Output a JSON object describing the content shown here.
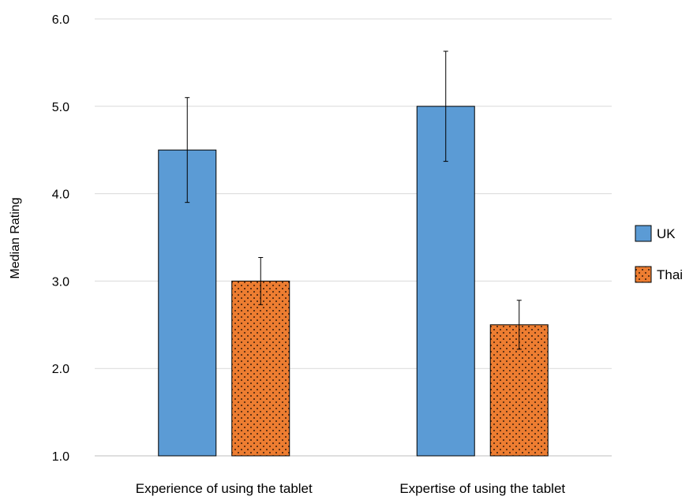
{
  "chart_data": {
    "type": "bar",
    "categories": [
      "Experience of using the tablet",
      "Expertise of using the tablet"
    ],
    "series": [
      {
        "name": "UK",
        "values": [
          4.5,
          5.0
        ],
        "error_upper": [
          5.1,
          5.63
        ],
        "error_lower": [
          3.9,
          4.37
        ],
        "color": "#5B9BD5",
        "pattern": "solid"
      },
      {
        "name": "Thai",
        "values": [
          3.0,
          2.5
        ],
        "error_upper": [
          3.27,
          2.78
        ],
        "error_lower": [
          2.73,
          2.22
        ],
        "color": "#ED7D31",
        "pattern": "dotted"
      }
    ],
    "title": "",
    "xlabel": "",
    "ylabel": "Median Rating",
    "ylim": [
      1.0,
      6.0
    ],
    "yticks": [
      "1.0",
      "2.0",
      "3.0",
      "4.0",
      "5.0",
      "6.0"
    ],
    "grid": true,
    "legend_position": "right"
  }
}
